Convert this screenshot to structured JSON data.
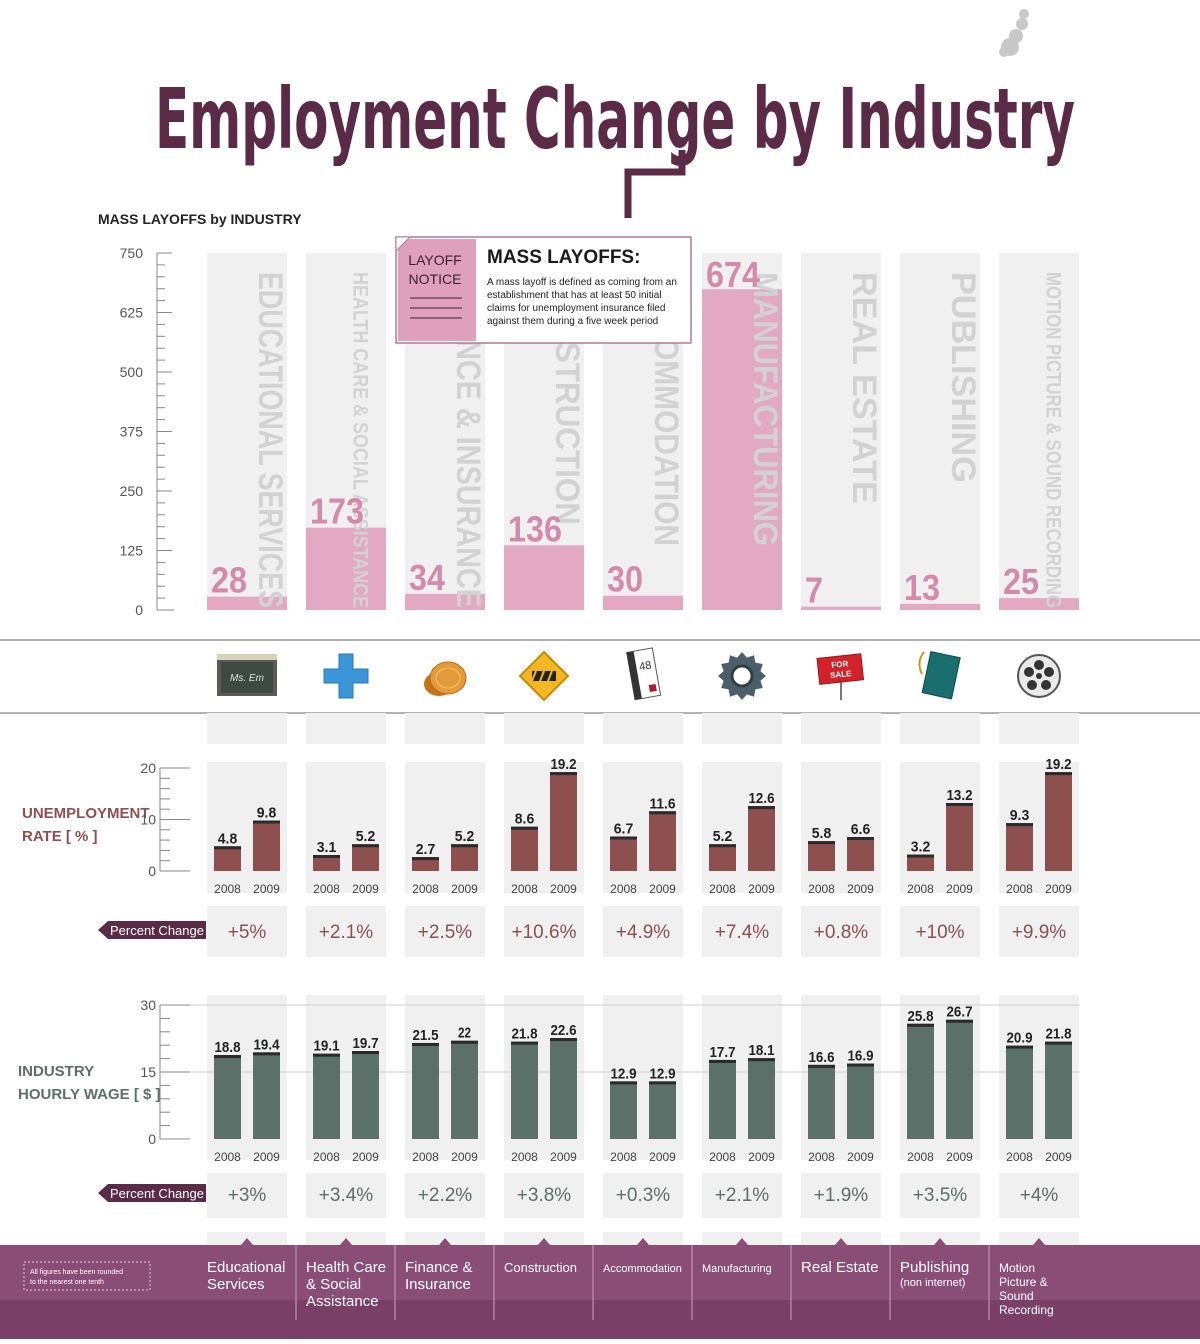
{
  "title": "Employment Change by Industry",
  "colors": {
    "purple": "#5a2a47",
    "pink": "#e3a9c3",
    "maroon": "#8e4f4f",
    "teal": "#5a7068",
    "column": "#f0f0f0",
    "pinkDark": "#d58aac"
  },
  "layoffs": {
    "heading": "MASS LAYOFFS by INDUSTRY",
    "notice": {
      "tag_line1": "LAYOFF",
      "tag_line2": "NOTICE",
      "title": "MASS LAYOFFS:",
      "body_lines": [
        "A mass layoff is defined as coming from an",
        "establishment that has at least 50 initial",
        "claims for unemployment insurance filed",
        "against them during a five week period"
      ]
    }
  },
  "unemployment": {
    "label_line1": "UNEMPLOYMENT",
    "label_line2": "RATE [ % ]"
  },
  "wage": {
    "label_line1": "INDUSTRY",
    "label_line2": "HOURLY WAGE [ $ ]"
  },
  "percent_change_label": "Percent Change",
  "footnote_line1": "All figures have been rounded",
  "footnote_line2": "to the nearest one tenth",
  "icons": [
    "chalkboard-icon",
    "medical-cross-icon",
    "coins-icon",
    "construction-sign-icon",
    "hotel-keycard-icon",
    "gear-icon",
    "for-sale-sign-icon",
    "book-icon",
    "film-reel-icon"
  ],
  "icon_text": {
    "chalkboard": "Ms. Em",
    "keycard": "48",
    "sale_line1": "FOR",
    "sale_line2": "SALE"
  },
  "chart_data": [
    {
      "type": "bar",
      "title": "MASS LAYOFFS by INDUSTRY",
      "categories": [
        "EDUCATIONAL SERVICES",
        "HEALTH CARE & SOCIAL ASSISTANCE",
        "FINANCE & INSURANCE",
        "CONSTRUCTION",
        "ACCOMMODATION",
        "MANUFACTURING",
        "REAL ESTATE",
        "PUBLISHING",
        "MOTION PICTURE & SOUND RECORDING"
      ],
      "values": [
        28,
        173,
        34,
        136,
        30,
        674,
        7,
        13,
        25
      ],
      "value_labels": [
        "28",
        "173",
        "34",
        "136",
        "30",
        "674",
        "7",
        "13",
        "25"
      ],
      "yticks": [
        "750",
        "625",
        "500",
        "375",
        "250",
        "125",
        "0"
      ],
      "ylim": [
        0,
        750
      ]
    },
    {
      "type": "bar",
      "title": "UNEMPLOYMENT RATE [ % ]",
      "categories": [
        "Educational Services",
        "Health Care & Social Assistance",
        "Finance & Insurance",
        "Construction",
        "Accommodation",
        "Manufacturing",
        "Real Estate",
        "Publishing (non internet)",
        "Motion Picture & Sound Recording"
      ],
      "x_labels": [
        "2008",
        "2009"
      ],
      "series": [
        {
          "name": "2008",
          "values": [
            4.8,
            3.1,
            2.7,
            8.6,
            6.7,
            5.2,
            5.8,
            3.2,
            9.3
          ],
          "labels": [
            "4.8",
            "3.1",
            "2.7",
            "8.6",
            "6.7",
            "5.2",
            "5.8",
            "3.2",
            "9.3"
          ]
        },
        {
          "name": "2009",
          "values": [
            9.8,
            5.2,
            5.2,
            19.2,
            11.6,
            12.6,
            6.6,
            13.2,
            19.2
          ],
          "labels": [
            "9.8",
            "5.2",
            "5.2",
            "19.2",
            "11.6",
            "12.6",
            "6.6",
            "13.2",
            "19.2"
          ]
        }
      ],
      "percent_change": [
        "+5%",
        "+2.1%",
        "+2.5%",
        "+10.6%",
        "+4.9%",
        "+7.4%",
        "+0.8%",
        "+10%",
        "+9.9%"
      ],
      "yticks": [
        "20",
        "10",
        "0"
      ],
      "ylim": [
        0,
        20
      ]
    },
    {
      "type": "bar",
      "title": "INDUSTRY HOURLY WAGE [ $ ]",
      "categories": [
        "Educational Services",
        "Health Care & Social Assistance",
        "Finance & Insurance",
        "Construction",
        "Accommodation",
        "Manufacturing",
        "Real Estate",
        "Publishing (non internet)",
        "Motion Picture & Sound Recording"
      ],
      "x_labels": [
        "2008",
        "2009"
      ],
      "series": [
        {
          "name": "2008",
          "values": [
            18.8,
            19.1,
            21.5,
            21.8,
            12.9,
            17.7,
            16.6,
            25.8,
            20.9
          ],
          "labels": [
            "18.8",
            "19.1",
            "21.5",
            "21.8",
            "12.9",
            "17.7",
            "16.6",
            "25.8",
            "20.9"
          ]
        },
        {
          "name": "2009",
          "values": [
            19.4,
            19.7,
            22,
            22.6,
            12.9,
            18.1,
            16.9,
            26.7,
            21.8
          ],
          "labels": [
            "19.4",
            "19.7",
            "22",
            "22.6",
            "12.9",
            "18.1",
            "16.9",
            "26.7",
            "21.8"
          ]
        }
      ],
      "percent_change": [
        "+3%",
        "+3.4%",
        "+2.2%",
        "+3.8%",
        "+0.3%",
        "+2.1%",
        "+1.9%",
        "+3.5%",
        "+4%"
      ],
      "yticks": [
        "30",
        "15",
        "0"
      ],
      "ylim": [
        0,
        30
      ]
    }
  ],
  "footer_names": [
    [
      "Educational",
      "Services"
    ],
    [
      "Health Care",
      "& Social",
      "Assistance"
    ],
    [
      "Finance &",
      "Insurance"
    ],
    [
      "Construction"
    ],
    [
      "Accommodation"
    ],
    [
      "Manufacturing"
    ],
    [
      "Real Estate"
    ],
    [
      "Publishing",
      "(non internet)"
    ],
    [
      "Motion",
      "Picture &",
      "Sound",
      "Recording"
    ]
  ]
}
